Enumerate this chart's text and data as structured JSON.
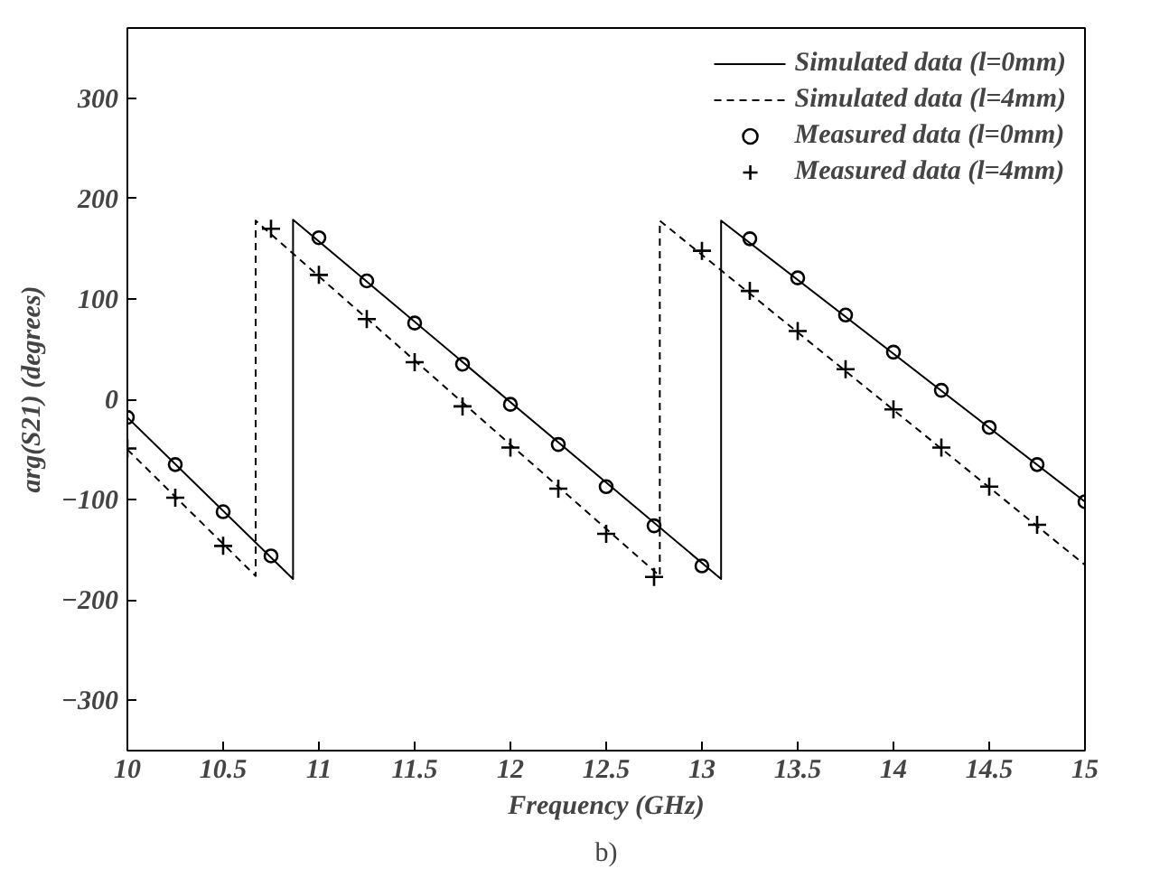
{
  "chart_data": {
    "type": "line",
    "xlabel": "Frequency (GHz)",
    "ylabel": "arg(S21) (degrees)",
    "xlim": [
      10,
      15
    ],
    "xticks": [
      10,
      10.5,
      11,
      11.5,
      12,
      12.5,
      13,
      13.5,
      14,
      14.5,
      15
    ],
    "ylim": [
      -350,
      370
    ],
    "yticks": [
      -300,
      -200,
      -100,
      0,
      100,
      200,
      300
    ],
    "grid": false,
    "legend": "top right",
    "annotations": [
      "b)"
    ],
    "series": [
      {
        "name": "Simulated data (l=0mm)",
        "color": "#000000",
        "line_style": "solid",
        "marker": "none",
        "x": [
          10,
          10.865,
          10.865,
          13.1,
          13.1,
          15
        ],
        "values": [
          -18,
          -179,
          179,
          -179,
          178,
          -102
        ]
      },
      {
        "name": "Simulated data (l=4mm)",
        "color": "#000000",
        "line_style": "dashed",
        "marker": "none",
        "x": [
          10,
          10.67,
          10.67,
          12.78,
          12.78,
          15
        ],
        "values": [
          -50,
          -176,
          178,
          -176,
          178,
          -165
        ]
      },
      {
        "name": "Measured data (l=0mm)",
        "type": "scatter",
        "color": "#000000",
        "marker": "circle",
        "x": [
          10,
          10.25,
          10.5,
          10.75,
          11,
          11.25,
          11.5,
          11.75,
          12,
          12.25,
          12.5,
          12.75,
          13,
          13.25,
          13.5,
          13.75,
          14,
          14.25,
          14.5,
          14.75,
          15
        ],
        "values": [
          -18,
          -65,
          -112,
          -156,
          161,
          118,
          76,
          35,
          -5,
          -45,
          -87,
          -126,
          -166,
          160,
          121,
          84,
          47,
          9,
          -28,
          -65,
          -102
        ]
      },
      {
        "name": "Measured data (l=4mm)",
        "type": "scatter",
        "color": "#000000",
        "marker": "cross",
        "x": [
          10,
          10.25,
          10.5,
          10.75,
          11,
          11.25,
          11.5,
          11.75,
          12,
          12.25,
          12.5,
          12.75,
          13,
          13.25,
          13.5,
          13.75,
          14,
          14.25,
          14.5,
          14.75
        ],
        "values": [
          -49,
          -98,
          -146,
          170,
          124,
          80,
          37,
          -7,
          -48,
          -89,
          -134,
          -177,
          148,
          108,
          68,
          30,
          -10,
          -48,
          -87,
          -125
        ]
      }
    ]
  }
}
